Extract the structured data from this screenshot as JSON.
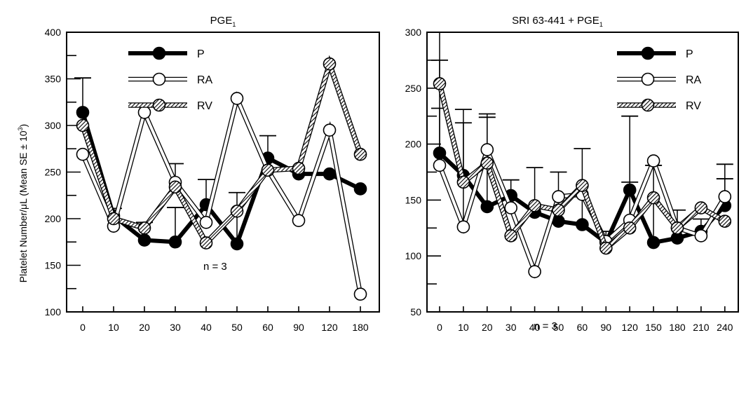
{
  "chart_data": [
    {
      "type": "line",
      "title": "PGE",
      "title_sub": "1",
      "ylabel": "Platelet Number/μL (Mean SE ± 10",
      "ylabel_sup": "3",
      "ylabel_end": ")",
      "xlabel": "",
      "categories": [
        "0",
        "10",
        "20",
        "30",
        "40",
        "50",
        "60",
        "90",
        "120",
        "180"
      ],
      "ylim": [
        100,
        400
      ],
      "yticks": [
        100,
        150,
        200,
        250,
        300,
        350,
        400
      ],
      "annotation": "n = 3",
      "legend_position": "top-center",
      "series": [
        {
          "name": "P",
          "style": "black",
          "values": [
            314,
            203,
            177,
            175,
            215,
            173,
            265,
            248,
            248,
            232
          ],
          "err_up": [
            351,
            211,
            196,
            212,
            242,
            228,
            289,
            null,
            null,
            null
          ]
        },
        {
          "name": "RA",
          "style": "open",
          "values": [
            269,
            192,
            314,
            239,
            196,
            329,
            252,
            198,
            295,
            119
          ],
          "err_up": [
            null,
            null,
            null,
            null,
            null,
            null,
            null,
            null,
            null,
            null
          ]
        },
        {
          "name": "RV",
          "style": "hatched",
          "values": [
            300,
            200,
            190,
            234,
            174,
            208,
            252,
            254,
            366,
            269
          ],
          "err_up": [
            null,
            null,
            null,
            259,
            null,
            null,
            null,
            null,
            null,
            null
          ]
        }
      ]
    },
    {
      "type": "line",
      "title": "SRI 63-441 + PGE",
      "title_sub": "1",
      "xlabel": "",
      "ylabel": "",
      "categories": [
        "0",
        "10",
        "20",
        "30",
        "40",
        "50",
        "60",
        "90",
        "120",
        "150",
        "180",
        "210",
        "240"
      ],
      "ylim": [
        50,
        300
      ],
      "yticks": [
        50,
        100,
        150,
        200,
        250,
        300
      ],
      "annotation": "n = 3",
      "legend_position": "top-right",
      "series": [
        {
          "name": "P",
          "style": "black",
          "values": [
            192,
            172,
            144,
            154,
            139,
            131,
            128,
            112,
            159,
            112,
            116,
            122,
            145
          ],
          "err_up": [
            232,
            231,
            227,
            168,
            179,
            175,
            196,
            122,
            225,
            181,
            141,
            133,
            182
          ]
        },
        {
          "name": "RA",
          "style": "open",
          "values": [
            181,
            126,
            195,
            143,
            86,
            153,
            155,
            113,
            132,
            185,
            125,
            118,
            153
          ],
          "err_up": [
            300,
            219,
            224,
            null,
            null,
            null,
            null,
            null,
            166,
            null,
            null,
            null,
            169
          ]
        },
        {
          "name": "RV",
          "style": "hatched",
          "values": [
            254,
            166,
            183,
            118,
            145,
            141,
            163,
            107,
            125,
            152,
            125,
            143,
            131
          ],
          "err_up": [
            275,
            null,
            null,
            null,
            null,
            null,
            null,
            null,
            null,
            null,
            null,
            null,
            null
          ]
        }
      ]
    }
  ]
}
